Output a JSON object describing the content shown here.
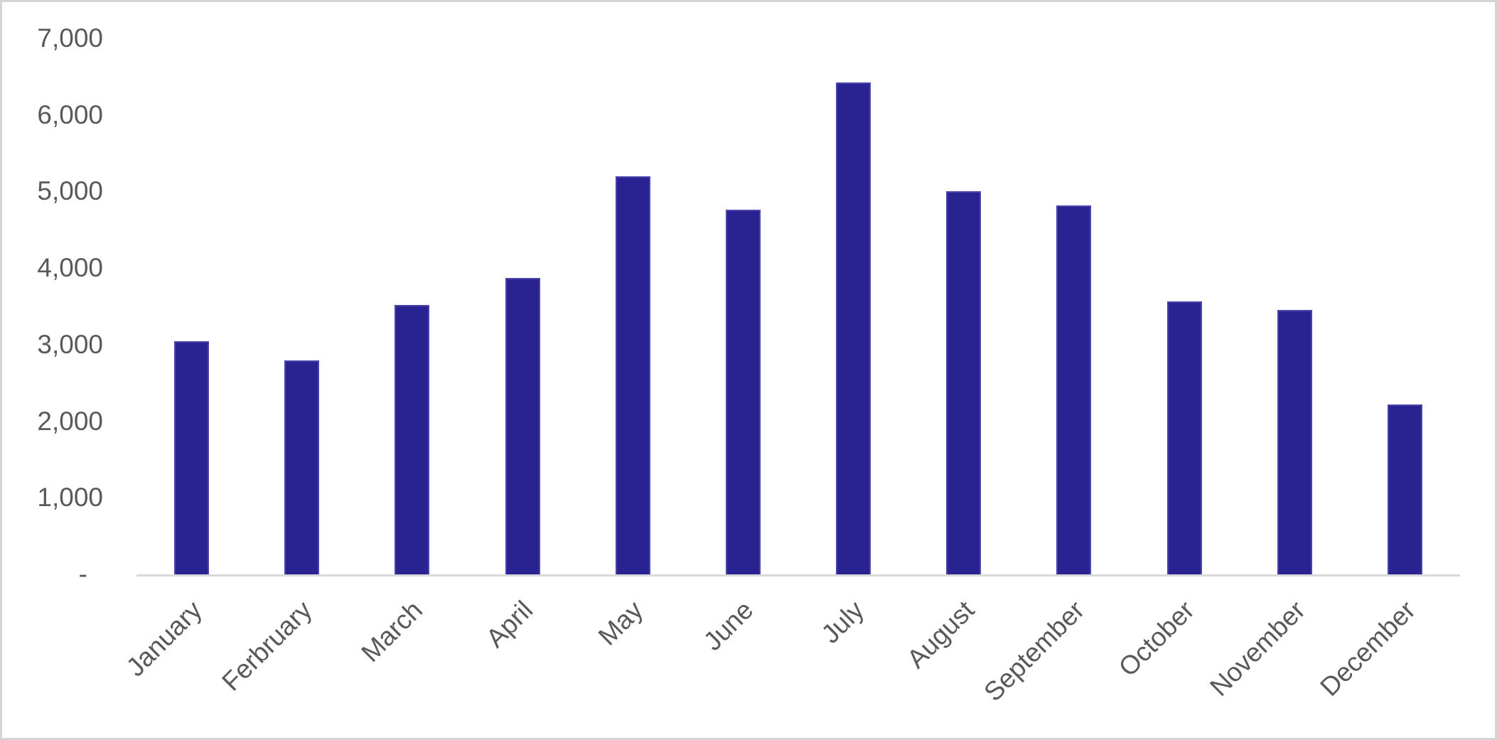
{
  "chart_data": {
    "type": "bar",
    "title": "",
    "xlabel": "",
    "ylabel": "",
    "categories": [
      "January",
      "Ferbruary",
      "March",
      "April",
      "May",
      "June",
      "July",
      "August",
      "September",
      "October",
      "November",
      "December"
    ],
    "values": [
      3040,
      2790,
      3520,
      3870,
      5200,
      4760,
      6420,
      5000,
      4820,
      3560,
      3450,
      2220
    ],
    "ylim": [
      0,
      7000
    ],
    "ytick_interval": 1000,
    "yticks": [
      {
        "value": 0,
        "label": "-"
      },
      {
        "value": 1000,
        "label": "1,000"
      },
      {
        "value": 2000,
        "label": "2,000"
      },
      {
        "value": 3000,
        "label": "3,000"
      },
      {
        "value": 4000,
        "label": "4,000"
      },
      {
        "value": 5000,
        "label": "5,000"
      },
      {
        "value": 6000,
        "label": "6,000"
      },
      {
        "value": 7000,
        "label": "7,000"
      }
    ],
    "gridlines": false,
    "legend": "none",
    "x_label_rotation_deg": 45,
    "colors": {
      "bar_fill": "#282390",
      "bar_edge": "#4a45ad",
      "axis_line": "#d9d9d9",
      "tick_text": "#595959",
      "frame_border": "#d5d5d5",
      "background": "#ffffff"
    }
  }
}
